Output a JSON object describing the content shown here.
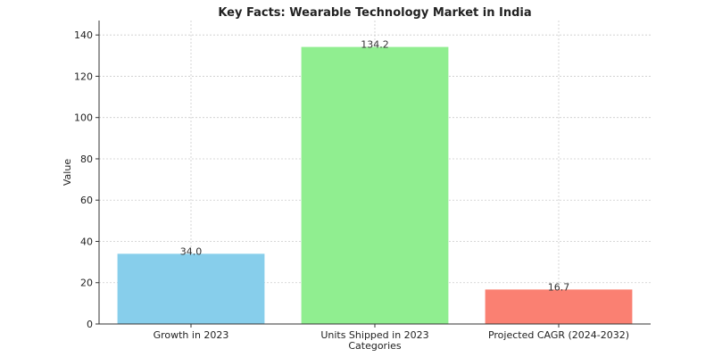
{
  "chart_data": {
    "type": "bar",
    "title": "Key Facts: Wearable Technology Market in India",
    "xlabel": "Categories",
    "ylabel": "Value",
    "categories": [
      "Growth in 2023",
      "Units Shipped in 2023",
      "Projected CAGR (2024-2032)"
    ],
    "values": [
      34.0,
      134.2,
      16.7
    ],
    "data_labels": [
      "34.0",
      "134.2",
      "16.7"
    ],
    "bar_colors": [
      "#87CEEB",
      "#90EE90",
      "#FA8072"
    ],
    "ylim": [
      0,
      147
    ],
    "yticks": [
      0,
      20,
      40,
      60,
      80,
      100,
      120,
      140
    ],
    "grid": true,
    "legend": "none"
  }
}
